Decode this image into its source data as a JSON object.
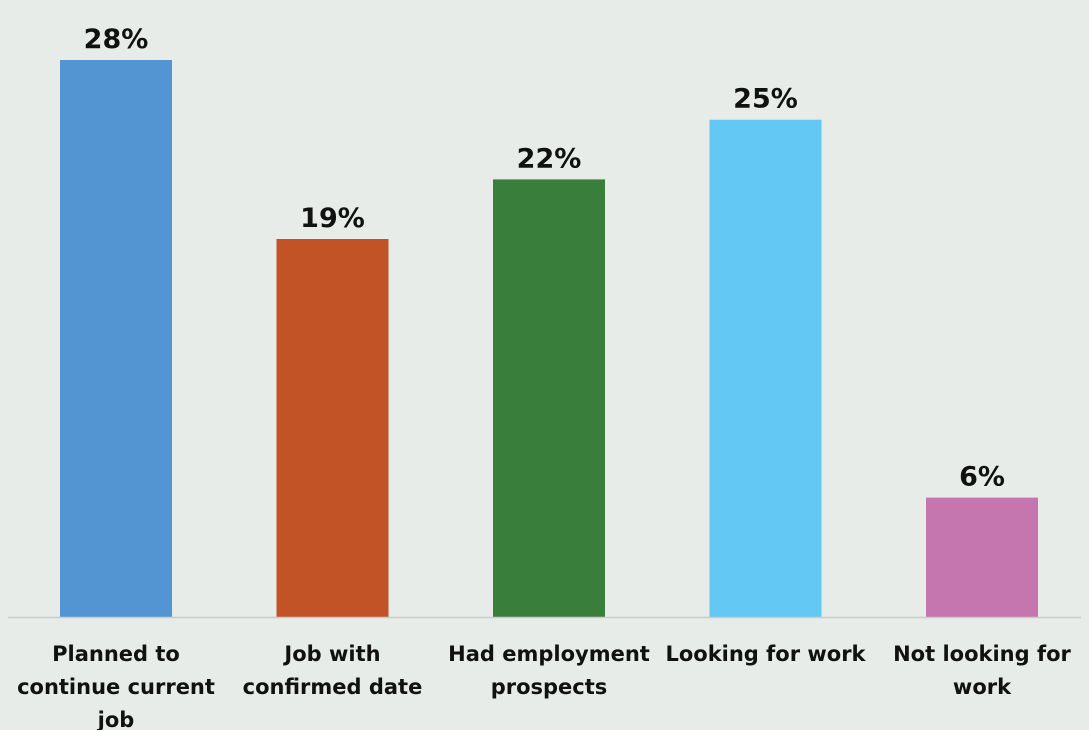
{
  "chart_data": {
    "type": "bar",
    "categories": [
      [
        "Planned to",
        "continue current",
        "job"
      ],
      [
        "Job with",
        "confirmed date"
      ],
      [
        "Had employment",
        "prospects"
      ],
      [
        "Looking for work"
      ],
      [
        "Not looking for",
        "work"
      ]
    ],
    "values": [
      28,
      19,
      22,
      25,
      6
    ],
    "value_labels": [
      "28%",
      "19%",
      "22%",
      "25%",
      "6%"
    ],
    "colors": [
      "#5394d2",
      "#c15327",
      "#3a7e3b",
      "#63c8f3",
      "#c676af"
    ],
    "title": "",
    "xlabel": "",
    "ylabel": "",
    "ylim": [
      0,
      28
    ],
    "grid": false,
    "legend": "none"
  },
  "style": {
    "background": "#e7ece9",
    "axis_color": "#c9ccca",
    "text_color": "#111111"
  }
}
